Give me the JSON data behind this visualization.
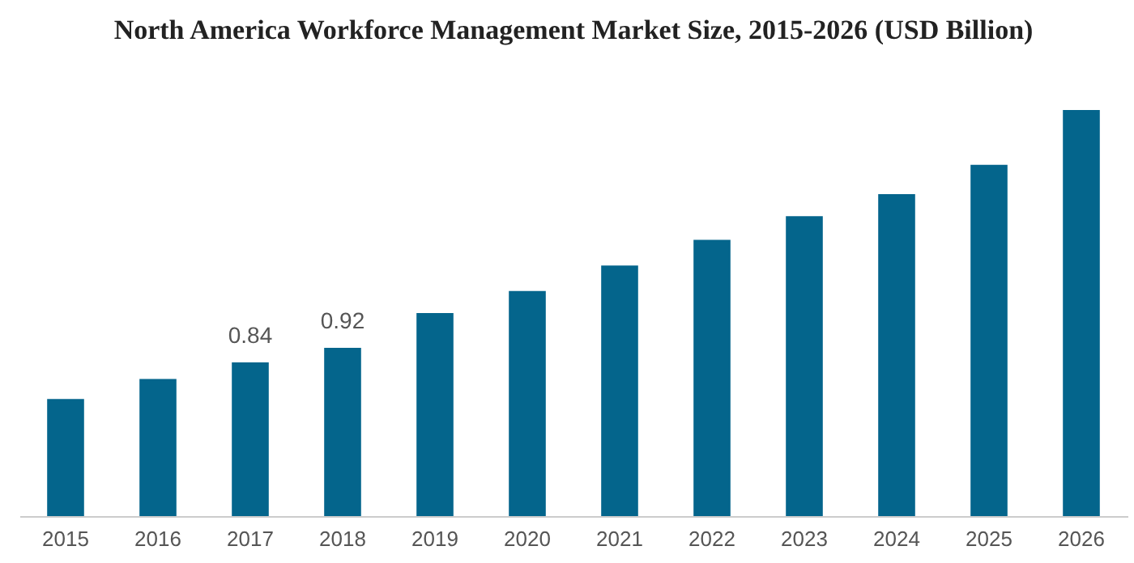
{
  "chart_data": {
    "type": "bar",
    "title": "North America Workforce Management Market Size, 2015-2026 (USD Billion)",
    "categories": [
      "2015",
      "2016",
      "2017",
      "2018",
      "2019",
      "2020",
      "2021",
      "2022",
      "2023",
      "2024",
      "2025",
      "2026"
    ],
    "values": [
      0.64,
      0.75,
      0.84,
      0.92,
      1.11,
      1.23,
      1.37,
      1.51,
      1.64,
      1.76,
      1.92,
      2.22
    ],
    "value_labels": [
      null,
      null,
      "0.84",
      "0.92",
      null,
      null,
      null,
      null,
      null,
      null,
      null,
      null
    ],
    "ylim": [
      0,
      2.22
    ],
    "tick_labels": "x",
    "color": "#04658c",
    "grid": false
  }
}
